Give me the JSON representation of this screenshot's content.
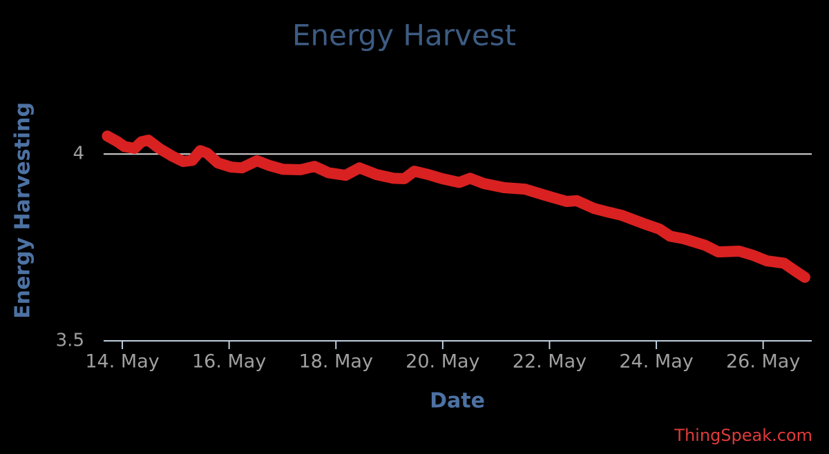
{
  "chart_data": {
    "type": "line",
    "title": "Energy Harvest",
    "xlabel": "Date",
    "ylabel": "Energy Harvesting",
    "credit": "ThingSpeak.com",
    "xlim": [
      13.65,
      26.91
    ],
    "xticks": [
      {
        "value": 14,
        "label": "14. May"
      },
      {
        "value": 16,
        "label": "16. May"
      },
      {
        "value": 18,
        "label": "18. May"
      },
      {
        "value": 20,
        "label": "20. May"
      },
      {
        "value": 22,
        "label": "22. May"
      },
      {
        "value": 24,
        "label": "24. May"
      },
      {
        "value": 26,
        "label": "26. May"
      }
    ],
    "ylim": [
      3.5,
      4.15
    ],
    "yticks": [
      {
        "value": 3.5,
        "label": "3.5"
      },
      4
    ],
    "grid": true,
    "series": [
      {
        "color": "#d92121",
        "x": [
          13.72,
          13.91,
          14.04,
          14.23,
          14.36,
          14.49,
          14.69,
          14.94,
          15.14,
          15.31,
          15.46,
          15.59,
          15.79,
          16.04,
          16.24,
          16.52,
          16.76,
          17.01,
          17.34,
          17.6,
          17.86,
          18.18,
          18.44,
          18.76,
          19.08,
          19.28,
          19.47,
          19.73,
          19.99,
          20.31,
          20.51,
          20.77,
          21.15,
          21.54,
          21.93,
          22.32,
          22.51,
          22.84,
          23.09,
          23.35,
          23.74,
          24.06,
          24.26,
          24.52,
          24.91,
          25.16,
          25.55,
          25.81,
          26.07,
          26.39,
          26.59,
          26.78
        ],
        "values": [
          4.048,
          4.033,
          4.02,
          4.015,
          4.033,
          4.037,
          4.015,
          3.994,
          3.98,
          3.983,
          4.009,
          4.002,
          3.976,
          3.965,
          3.963,
          3.982,
          3.969,
          3.959,
          3.958,
          3.967,
          3.95,
          3.943,
          3.963,
          3.945,
          3.935,
          3.934,
          3.954,
          3.945,
          3.934,
          3.924,
          3.935,
          3.921,
          3.91,
          3.906,
          3.889,
          3.873,
          3.875,
          3.854,
          3.845,
          3.836,
          3.815,
          3.799,
          3.78,
          3.773,
          3.756,
          3.738,
          3.74,
          3.729,
          3.714,
          3.708,
          3.688,
          3.67
        ]
      }
    ]
  }
}
